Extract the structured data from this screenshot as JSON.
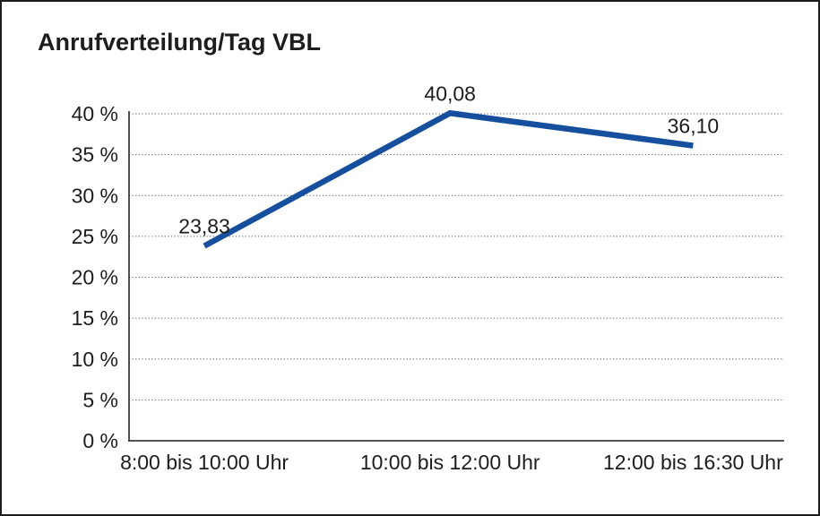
{
  "frame": {
    "background": "#ffffff",
    "border_color": "#1d1d1b"
  },
  "chart_data": {
    "type": "line",
    "title": "Anrufverteilung/Tag VBL",
    "categories": [
      "8:00 bis 10:00 Uhr",
      "10:00 bis 12:00 Uhr",
      "12:00 bis 16:30 Uhr"
    ],
    "values": [
      23.83,
      40.08,
      36.1
    ],
    "point_labels": [
      "23,83",
      "40,08",
      "36,10"
    ],
    "y_ticks": [
      0,
      5,
      10,
      15,
      20,
      25,
      30,
      35,
      40
    ],
    "y_tick_labels": [
      "0 %",
      "5 %",
      "10 %",
      "15 %",
      "20 %",
      "25 %",
      "30 %",
      "35 %",
      "40 %"
    ],
    "ylim": [
      0,
      40
    ],
    "xlabel": "",
    "ylabel": "",
    "grid": "horizontal-dotted",
    "legend": "none",
    "line_color": "#164f9d",
    "axis_color": "#3c3c3b",
    "gridline_color": "#5a5a5a",
    "text_color": "#1d1d1b"
  }
}
